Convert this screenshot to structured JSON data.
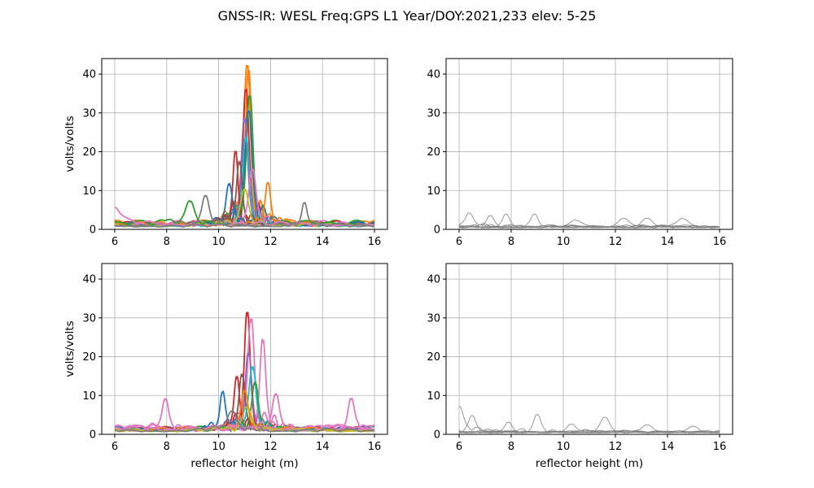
{
  "figure": {
    "title": "GNSS-IR: WESL Freq:GPS L1 Year/DOY:2021,233 elev: 5-25"
  },
  "chart_data": [
    {
      "type": "line",
      "panel": "top-left",
      "title": "",
      "xlabel": "",
      "ylabel": "volts/volts",
      "xlim": [
        5.5,
        16.5
      ],
      "ylim": [
        0,
        44
      ],
      "xticks": [
        6,
        8,
        10,
        12,
        14,
        16
      ],
      "yticks": [
        0,
        10,
        20,
        30,
        40
      ],
      "xtick_labels": [
        "6",
        "8",
        "10",
        "12",
        "14",
        "16"
      ],
      "ytick_labels": [
        "0",
        "10",
        "20",
        "30",
        "40"
      ],
      "grid": true,
      "series_style": "colored periodograms (accepted tracks)",
      "series": [
        {
          "color": "#ff7f0e",
          "peak_x": 11.1,
          "peak_y": 40,
          "width": 0.18,
          "base": 2.5
        },
        {
          "color": "#ff7f0e",
          "peak_x": 11.15,
          "peak_y": 39,
          "width": 0.16,
          "base": 2.2
        },
        {
          "color": "#d62728",
          "peak_x": 11.05,
          "peak_y": 34,
          "width": 0.17,
          "base": 2.0
        },
        {
          "color": "#2ca02c",
          "peak_x": 11.2,
          "peak_y": 32,
          "width": 0.18,
          "base": 2.4
        },
        {
          "color": "#1f77b4",
          "peak_x": 11.15,
          "peak_y": 29,
          "width": 0.2,
          "base": 2.0
        },
        {
          "color": "#9467bd",
          "peak_x": 11.0,
          "peak_y": 27,
          "width": 0.18,
          "base": 1.8
        },
        {
          "color": "#17becf",
          "peak_x": 11.05,
          "peak_y": 22,
          "width": 0.2,
          "base": 1.5
        },
        {
          "color": "#d62728",
          "peak_x": 10.65,
          "peak_y": 18,
          "width": 0.14,
          "base": 2.2
        },
        {
          "color": "#8c564b",
          "peak_x": 10.8,
          "peak_y": 16,
          "width": 0.16,
          "base": 1.9
        },
        {
          "color": "#e377c2",
          "peak_x": 11.3,
          "peak_y": 14,
          "width": 0.2,
          "base": 2.3
        },
        {
          "color": "#1f77b4",
          "peak_x": 10.4,
          "peak_y": 10,
          "width": 0.18,
          "base": 2.0
        },
        {
          "color": "#ff7f0e",
          "peak_x": 11.9,
          "peak_y": 10,
          "width": 0.15,
          "base": 2.1
        },
        {
          "color": "#bcbd22",
          "peak_x": 11.0,
          "peak_y": 9,
          "width": 0.22,
          "base": 1.6
        },
        {
          "color": "#7f7f7f",
          "peak_x": 9.5,
          "peak_y": 7,
          "width": 0.2,
          "base": 1.7
        },
        {
          "color": "#2ca02c",
          "peak_x": 8.9,
          "peak_y": 5.5,
          "width": 0.25,
          "base": 2.3
        },
        {
          "color": "#e377c2",
          "peak_x": 6.0,
          "peak_y": 4,
          "width": 0.4,
          "base": 2.0
        },
        {
          "color": "#7f7f7f",
          "peak_x": 13.3,
          "peak_y": 6,
          "width": 0.15,
          "base": 1.4
        }
      ]
    },
    {
      "type": "line",
      "panel": "top-right",
      "title": "",
      "xlabel": "",
      "ylabel": "",
      "xlim": [
        5.5,
        16.5
      ],
      "ylim": [
        0,
        44
      ],
      "xticks": [
        6,
        8,
        10,
        12,
        14,
        16
      ],
      "yticks": [
        0,
        10,
        20,
        30,
        40
      ],
      "xtick_labels": [
        "6",
        "8",
        "10",
        "12",
        "14",
        "16"
      ],
      "ytick_labels": [
        "0",
        "10",
        "20",
        "30",
        "40"
      ],
      "grid": true,
      "series_style": "thin gray periodograms (rejected tracks)",
      "series": [
        {
          "color": "#808080",
          "peak_x": 6.4,
          "peak_y": 3.5,
          "width": 0.2,
          "base": 1.2
        },
        {
          "color": "#808080",
          "peak_x": 7.8,
          "peak_y": 3.2,
          "width": 0.2,
          "base": 1.1
        },
        {
          "color": "#808080",
          "peak_x": 8.9,
          "peak_y": 3.0,
          "width": 0.2,
          "base": 1.0
        },
        {
          "color": "#808080",
          "peak_x": 12.3,
          "peak_y": 2.3,
          "width": 0.3,
          "base": 0.9
        },
        {
          "color": "#808080",
          "peak_x": 14.6,
          "peak_y": 2.2,
          "width": 0.3,
          "base": 0.9
        },
        {
          "color": "#808080",
          "peak_x": 7.2,
          "peak_y": 2.5,
          "width": 0.2,
          "base": 1.0
        },
        {
          "color": "#808080",
          "peak_x": 10.5,
          "peak_y": 1.8,
          "width": 0.3,
          "base": 0.8
        },
        {
          "color": "#808080",
          "peak_x": 13.2,
          "peak_y": 2.0,
          "width": 0.3,
          "base": 0.9
        }
      ]
    },
    {
      "type": "line",
      "panel": "bottom-left",
      "title": "",
      "xlabel": "reflector height (m)",
      "ylabel": "volts/volts",
      "xlim": [
        5.5,
        16.5
      ],
      "ylim": [
        0,
        44
      ],
      "xticks": [
        6,
        8,
        10,
        12,
        14,
        16
      ],
      "yticks": [
        0,
        10,
        20,
        30,
        40
      ],
      "xtick_labels": [
        "6",
        "8",
        "10",
        "12",
        "14",
        "16"
      ],
      "ytick_labels": [
        "0",
        "10",
        "20",
        "30",
        "40"
      ],
      "grid": true,
      "series_style": "colored periodograms (accepted tracks)",
      "series": [
        {
          "color": "#d62728",
          "peak_x": 11.1,
          "peak_y": 29.5,
          "width": 0.16,
          "base": 2.0
        },
        {
          "color": "#e377c2",
          "peak_x": 11.25,
          "peak_y": 27,
          "width": 0.18,
          "base": 2.5
        },
        {
          "color": "#e377c2",
          "peak_x": 11.7,
          "peak_y": 22,
          "width": 0.16,
          "base": 2.2
        },
        {
          "color": "#9467bd",
          "peak_x": 11.15,
          "peak_y": 19.5,
          "width": 0.18,
          "base": 1.8
        },
        {
          "color": "#d62728",
          "peak_x": 10.7,
          "peak_y": 13.5,
          "width": 0.15,
          "base": 2.0
        },
        {
          "color": "#8c564b",
          "peak_x": 10.9,
          "peak_y": 14,
          "width": 0.17,
          "base": 1.9
        },
        {
          "color": "#17becf",
          "peak_x": 11.3,
          "peak_y": 16,
          "width": 0.2,
          "base": 1.7
        },
        {
          "color": "#2ca02c",
          "peak_x": 11.4,
          "peak_y": 12,
          "width": 0.18,
          "base": 2.1
        },
        {
          "color": "#1f77b4",
          "peak_x": 10.15,
          "peak_y": 9.3,
          "width": 0.15,
          "base": 2.0
        },
        {
          "color": "#e377c2",
          "peak_x": 12.2,
          "peak_y": 9,
          "width": 0.2,
          "base": 2.3
        },
        {
          "color": "#ff7f0e",
          "peak_x": 11.0,
          "peak_y": 10,
          "width": 0.2,
          "base": 1.9
        },
        {
          "color": "#e377c2",
          "peak_x": 7.95,
          "peak_y": 7.8,
          "width": 0.18,
          "base": 2.4
        },
        {
          "color": "#e377c2",
          "peak_x": 15.1,
          "peak_y": 7.5,
          "width": 0.18,
          "base": 2.0
        },
        {
          "color": "#bcbd22",
          "peak_x": 11.1,
          "peak_y": 6,
          "width": 0.25,
          "base": 1.5
        },
        {
          "color": "#7f7f7f",
          "peak_x": 10.5,
          "peak_y": 5,
          "width": 0.25,
          "base": 1.5
        }
      ]
    },
    {
      "type": "line",
      "panel": "bottom-right",
      "title": "",
      "xlabel": "reflector height (m)",
      "ylabel": "",
      "xlim": [
        5.5,
        16.5
      ],
      "ylim": [
        0,
        44
      ],
      "xticks": [
        6,
        8,
        10,
        12,
        14,
        16
      ],
      "yticks": [
        0,
        10,
        20,
        30,
        40
      ],
      "xtick_labels": [
        "6",
        "8",
        "10",
        "12",
        "14",
        "16"
      ],
      "ytick_labels": [
        "0",
        "10",
        "20",
        "30",
        "40"
      ],
      "grid": true,
      "series_style": "thin gray periodograms (rejected tracks)",
      "series": [
        {
          "color": "#808080",
          "peak_x": 6.0,
          "peak_y": 6.5,
          "width": 0.25,
          "base": 1.0
        },
        {
          "color": "#808080",
          "peak_x": 6.5,
          "peak_y": 3.8,
          "width": 0.2,
          "base": 1.0
        },
        {
          "color": "#808080",
          "peak_x": 9.0,
          "peak_y": 4.2,
          "width": 0.2,
          "base": 0.9
        },
        {
          "color": "#808080",
          "peak_x": 11.6,
          "peak_y": 3.5,
          "width": 0.25,
          "base": 0.9
        },
        {
          "color": "#808080",
          "peak_x": 7.9,
          "peak_y": 2.5,
          "width": 0.2,
          "base": 0.9
        },
        {
          "color": "#808080",
          "peak_x": 13.2,
          "peak_y": 1.8,
          "width": 0.3,
          "base": 0.8
        },
        {
          "color": "#808080",
          "peak_x": 10.3,
          "peak_y": 2.0,
          "width": 0.25,
          "base": 0.8
        },
        {
          "color": "#808080",
          "peak_x": 15.0,
          "peak_y": 1.5,
          "width": 0.3,
          "base": 0.8
        }
      ]
    }
  ]
}
